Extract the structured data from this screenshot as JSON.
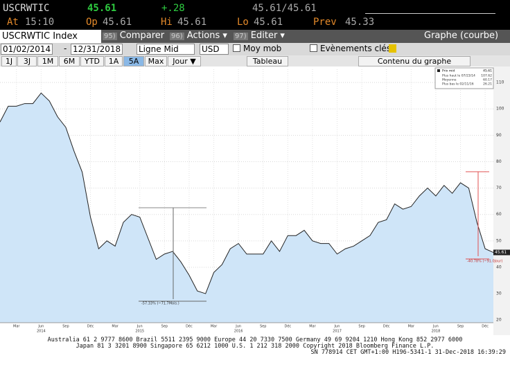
{
  "header": {
    "ticker": "USCRWTIC",
    "last": "45.61",
    "change": "+.28",
    "bid_ask": "45.61/45.61",
    "at_label": "At",
    "at": "15:10",
    "op_label": "Op",
    "op": "45.61",
    "hi_label": "Hi",
    "hi": "45.61",
    "lo_label": "Lo",
    "lo": "45.61",
    "prev_label": "Prev",
    "prev": "45.33"
  },
  "tabs": {
    "security": "USCRWTIC Index",
    "compare_key": "95)",
    "compare": "Comparer",
    "actions_key": "96)",
    "actions": "Actions ▾",
    "edit_key": "97)",
    "edit": "Editer ▾",
    "view": "Graphe (courbe)"
  },
  "settings": {
    "start": "01/02/2014",
    "end": "12/31/2018",
    "style": "Ligne Mid",
    "currency": "USD",
    "moving_avg": "Moy mob",
    "events": "Evènements clés"
  },
  "ranges": [
    "1J",
    "3J",
    "1M",
    "6M",
    "YTD",
    "1A",
    "5A",
    "Max"
  ],
  "toolbar": {
    "period": "Jour ▼",
    "table": "Tableau",
    "content": "Contenu du graphe"
  },
  "chart_data": {
    "type": "line",
    "categories": [
      null,
      null,
      "Mar",
      null,
      null,
      "Jun",
      null,
      null,
      "Sep",
      null,
      null,
      "Déc",
      null,
      null,
      "Mar",
      null,
      null,
      "Jun",
      null,
      null,
      "Sep",
      null,
      null,
      "Déc",
      null,
      null,
      "Mar",
      null,
      null,
      "Jun",
      null,
      null,
      "Sep",
      null,
      null,
      "Déc",
      null,
      null,
      "Mar",
      null,
      null,
      "Jun",
      null,
      null,
      "Sep",
      null,
      null,
      "Déc",
      null,
      null,
      "Mar",
      null,
      null,
      "Jun",
      null,
      null,
      "Sep",
      null,
      null,
      "Déc",
      null
    ],
    "year_labels": [
      "2014",
      "2015",
      "2016",
      "2017",
      "2018"
    ],
    "series": [
      {
        "name": "Prix mid",
        "color": "#222222",
        "fill": "#cfe5f8",
        "values": [
          95,
          101,
          101,
          102,
          102,
          106,
          103,
          97,
          93,
          84,
          76,
          59,
          47,
          50,
          48,
          57,
          60,
          59,
          51,
          43,
          45,
          46,
          42,
          37,
          31,
          30,
          38,
          41,
          47,
          49,
          45,
          45,
          45,
          50,
          46,
          52,
          52,
          54,
          50,
          49,
          49,
          45,
          47,
          48,
          50,
          52,
          57,
          58,
          64,
          62,
          63,
          67,
          70,
          67,
          71,
          68,
          72,
          70,
          57,
          47,
          45.61
        ]
      }
    ],
    "legend_value": "45.61",
    "stats": [
      {
        "label": "Plus haut le 07/23/14",
        "value": "107.62"
      },
      {
        "label": "Moyenne",
        "value": "60.17"
      },
      {
        "label": "Plus bas le 02/11/16",
        "value": "26.21"
      }
    ],
    "last_label": "45.61",
    "annotations": [
      "-57.33% (~71.7Mois.)",
      "-40.78% (~91.0Jour)"
    ],
    "ylim": [
      19,
      115
    ],
    "yticks": [
      20,
      30,
      40,
      50,
      60,
      70,
      80,
      90,
      100,
      110
    ],
    "grid": true
  },
  "footer": [
    "Australia 61 2 9777 8600 Brazil 5511 2395 9000 Europe 44 20 7330 7500 Germany 49 69 9204 1210 Hong Kong 852 2977 6000",
    "Japan 81 3 3201 8900 Singapore 65 6212 1000 U.S. 1 212 318 2000 Copyright 2018 Bloomberg Finance L.P.",
    "SN 778914 CET GMT+1:00 H196-5341-1 31-Dec-2018 16:39:29"
  ]
}
